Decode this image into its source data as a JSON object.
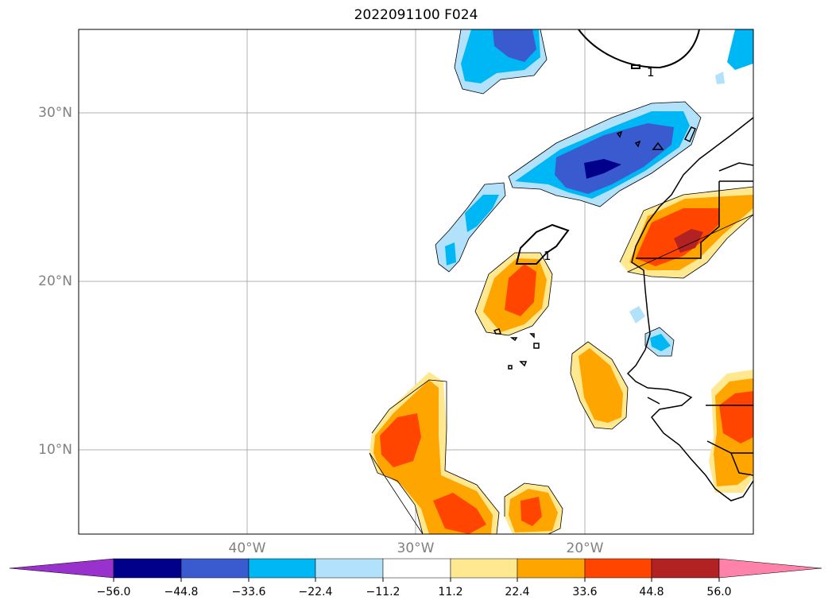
{
  "title": "2022091100 F024",
  "lat_labels": [
    "30°N",
    "20°N",
    "10°N"
  ],
  "lon_labels": [
    "40°W",
    "30°W",
    "20°W"
  ],
  "contour_labels": [
    "1",
    "1"
  ],
  "colorbar": {
    "ticks": [
      "−56.0",
      "−44.8",
      "−33.6",
      "−22.4",
      "−11.2",
      "11.2",
      "22.4",
      "33.6",
      "44.8",
      "56.0"
    ],
    "colors": [
      "#9932cc",
      "#00008b",
      "#3a5bcf",
      "#00b7f5",
      "#b2e2fb",
      "#ffffff",
      "#ffe88f",
      "#ffa500",
      "#ff4500",
      "#b22222",
      "#ff82aa"
    ]
  }
}
